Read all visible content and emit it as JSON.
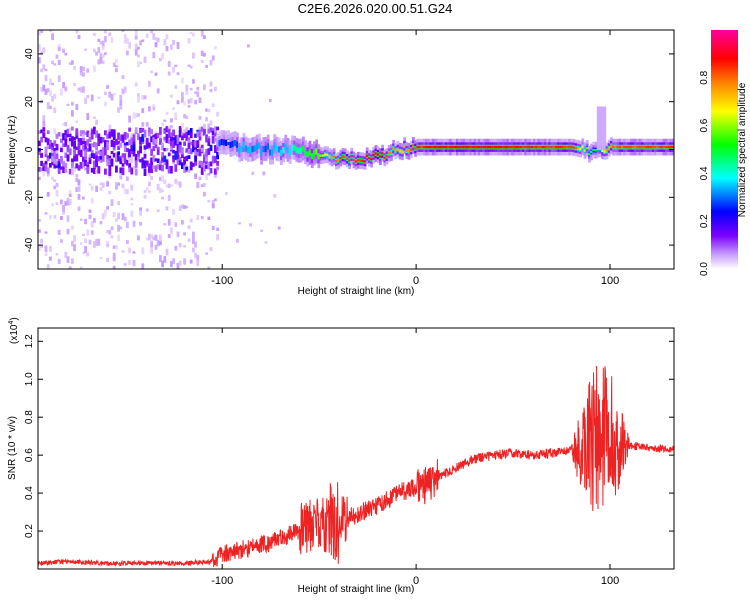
{
  "figure_title": "C2E6.2026.020.00.51.G24",
  "chart_data": [
    {
      "type": "heatmap",
      "xlabel": "Height of straight line (km)",
      "ylabel": "Frequency (Hz)",
      "xlim": [
        -195,
        133
      ],
      "ylim": [
        -50,
        50
      ],
      "x_ticks": [
        -100,
        0,
        100
      ],
      "x_tick_labels": [
        "-100",
        "0",
        "100"
      ],
      "y_ticks": [
        -40,
        -20,
        0,
        20,
        40
      ],
      "y_tick_labels": [
        "-40",
        "-20",
        "0",
        "20",
        "40"
      ],
      "colorbar": {
        "label": "Normalized spectral amplitude",
        "range": [
          0,
          1
        ],
        "ticks": [
          0.0,
          0.2,
          0.4,
          0.6,
          0.8
        ],
        "tick_labels": [
          "0.0",
          "0.2",
          "0.4",
          "0.6",
          "0.8"
        ],
        "colormap": [
          "#ffffff",
          "#c8a0ff",
          "#7a00ff",
          "#0000ff",
          "#00ffff",
          "#00ff00",
          "#ffff00",
          "#ff8000",
          "#ff0000",
          "#ff00a0"
        ]
      },
      "ridge": [
        {
          "x": -100,
          "freq": 2,
          "amp": 0.35
        },
        {
          "x": -90,
          "freq": 1,
          "amp": 0.4
        },
        {
          "x": -80,
          "freq": 0,
          "amp": 0.38
        },
        {
          "x": -70,
          "freq": 0,
          "amp": 0.42
        },
        {
          "x": -60,
          "freq": -1,
          "amp": 0.5
        },
        {
          "x": -50,
          "freq": -2,
          "amp": 0.6
        },
        {
          "x": -40,
          "freq": -4,
          "amp": 0.82
        },
        {
          "x": -30,
          "freq": -4,
          "amp": 0.85
        },
        {
          "x": -20,
          "freq": -3,
          "amp": 0.9
        },
        {
          "x": -10,
          "freq": 0,
          "amp": 0.7
        },
        {
          "x": 0,
          "freq": 1,
          "amp": 0.85
        },
        {
          "x": 20,
          "freq": 1,
          "amp": 0.9
        },
        {
          "x": 40,
          "freq": 1,
          "amp": 0.88
        },
        {
          "x": 60,
          "freq": 1,
          "amp": 0.85
        },
        {
          "x": 80,
          "freq": 1,
          "amp": 0.85
        },
        {
          "x": 90,
          "freq": -1,
          "amp": 0.5
        },
        {
          "x": 100,
          "freq": 1,
          "amp": 0.8
        },
        {
          "x": 133,
          "freq": 1,
          "amp": 0.85
        }
      ],
      "grid": false,
      "legend": "colorbar-right"
    },
    {
      "type": "line",
      "xlabel": "Height of straight line (km)",
      "ylabel": "SNR (10 * v/v)",
      "y_scale_label": "(x10^4)",
      "xlim": [
        -195,
        133
      ],
      "ylim": [
        0,
        1.27
      ],
      "x_ticks": [
        -100,
        0,
        100
      ],
      "x_tick_labels": [
        "-100",
        "0",
        "100"
      ],
      "y_ticks": [
        0.2,
        0.4,
        0.6,
        0.8,
        1.0,
        1.2
      ],
      "y_tick_labels": [
        "0.2",
        "0.4",
        "0.6",
        "0.8",
        "1.0",
        "1.2"
      ],
      "series": [
        {
          "color": "#ee2222",
          "x": [
            -195,
            -180,
            -160,
            -140,
            -120,
            -105,
            -100,
            -90,
            -80,
            -70,
            -60,
            -50,
            -40,
            -30,
            -20,
            -10,
            0,
            5,
            10,
            20,
            30,
            40,
            50,
            60,
            70,
            80,
            85,
            90,
            95,
            100,
            105,
            110,
            120,
            133
          ],
          "y": [
            0.03,
            0.04,
            0.03,
            0.03,
            0.03,
            0.04,
            0.08,
            0.1,
            0.13,
            0.16,
            0.2,
            0.23,
            0.25,
            0.29,
            0.33,
            0.4,
            0.43,
            0.44,
            0.48,
            0.53,
            0.58,
            0.6,
            0.61,
            0.6,
            0.61,
            0.62,
            0.64,
            0.66,
            0.7,
            0.7,
            0.65,
            0.65,
            0.64,
            0.63
          ]
        }
      ],
      "grid": false
    }
  ]
}
